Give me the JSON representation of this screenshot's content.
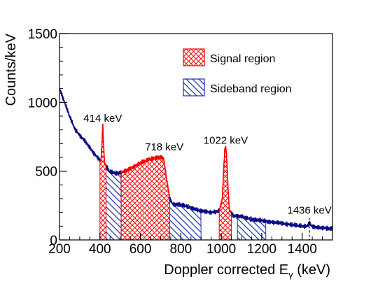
{
  "chart_data": {
    "type": "line",
    "xlabel": "Doppler corrected E",
    "xlabel_sub": "γ",
    "xlabel_unit": " (keV)",
    "ylabel": "Counts/keV",
    "xlim": [
      200,
      1550
    ],
    "ylim": [
      0,
      1500
    ],
    "x_ticks": [
      "200",
      "400",
      "600",
      "800",
      "1000",
      "1200",
      "1400"
    ],
    "x_tick_values": [
      200,
      400,
      600,
      800,
      1000,
      1200,
      1400
    ],
    "y_ticks": [
      "0",
      "500",
      "1000",
      "1500"
    ],
    "y_tick_values": [
      0,
      500,
      1000,
      1500
    ],
    "legend": [
      {
        "label": "Signal region",
        "color": "#ff0000",
        "pattern": "crosshatch"
      },
      {
        "label": "Sideband region",
        "color": "#1a2fb0",
        "pattern": "diagonal"
      }
    ],
    "legend_position": "top-right",
    "annotations": [
      {
        "text": "414 keV",
        "x": 414,
        "y": 860
      },
      {
        "text": "718 keV",
        "x": 718,
        "y": 650
      },
      {
        "text": "1022 keV",
        "x": 1022,
        "y": 700
      },
      {
        "text": "1436 keV",
        "x": 1436,
        "y": 190
      }
    ],
    "series": [
      {
        "line_color": "#0a0a8a",
        "peak_color": "#ff0000",
        "x": [
          200,
          225,
          250,
          275,
          300,
          325,
          350,
          375,
          395,
          405,
          410,
          414,
          418,
          423,
          430,
          445,
          475,
          505,
          540,
          575,
          610,
          645,
          680,
          705,
          715,
          722,
          730,
          745,
          760,
          800,
          850,
          900,
          950,
          990,
          1005,
          1012,
          1018,
          1022,
          1026,
          1032,
          1040,
          1060,
          1100,
          1150,
          1200,
          1250,
          1300,
          1350,
          1400,
          1425,
          1431,
          1436,
          1441,
          1447,
          1470,
          1500,
          1550
        ],
        "values": [
          1100,
          1000,
          900,
          810,
          760,
          720,
          670,
          620,
          590,
          570,
          700,
          845,
          690,
          560,
          540,
          500,
          485,
          490,
          510,
          540,
          565,
          585,
          600,
          600,
          590,
          520,
          440,
          300,
          260,
          255,
          235,
          210,
          200,
          210,
          300,
          520,
          660,
          680,
          620,
          420,
          220,
          175,
          170,
          150,
          140,
          130,
          120,
          110,
          100,
          100,
          115,
          128,
          115,
          100,
          90,
          88,
          82
        ]
      }
    ],
    "signal_regions": [
      [
        400,
        430
      ],
      [
        505,
        745
      ],
      [
        990,
        1050
      ]
    ],
    "sideband_regions": [
      [
        430,
        505
      ],
      [
        745,
        900
      ],
      [
        1080,
        1220
      ]
    ],
    "peak_marker": 1436,
    "grid": false
  }
}
